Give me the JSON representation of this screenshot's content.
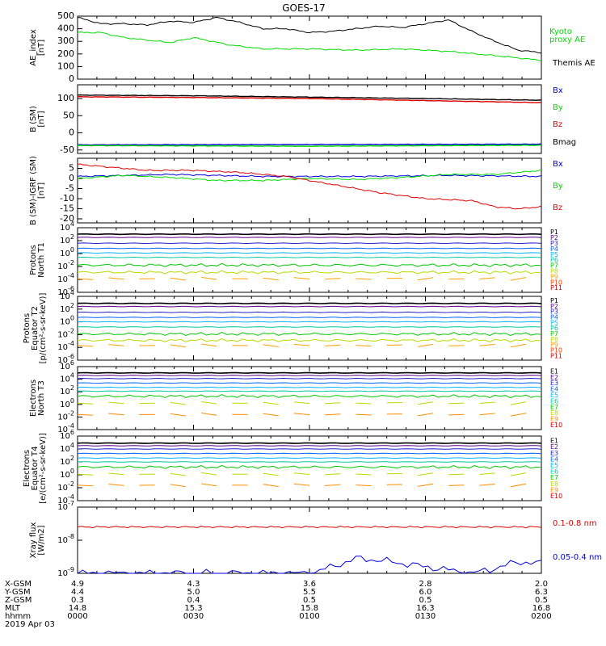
{
  "title": "GOES-17",
  "colors": {
    "black": "#000000",
    "red": "#dd0000",
    "green": "#00dd00",
    "blue": "#0000dd"
  },
  "x_ticks": [
    "0000",
    "0030",
    "0100",
    "0130",
    "0200"
  ],
  "ephemeris": {
    "row_labels": [
      "X-GSM",
      "Y-GSM",
      "Z-GSM",
      "MLT",
      "hhmm"
    ],
    "date_label": "2019 Apr 03",
    "columns": [
      [
        "4.9",
        "4.4",
        "0.3",
        "14.8",
        "0000"
      ],
      [
        "4.3",
        "5.0",
        "0.4",
        "15.3",
        "0030"
      ],
      [
        "3.6",
        "5.5",
        "0.5",
        "15.8",
        "0100"
      ],
      [
        "2.8",
        "6.0",
        "0.5",
        "16.3",
        "0130"
      ],
      [
        "2.0",
        "6.3",
        "0.5",
        "16.8",
        "0200"
      ]
    ]
  },
  "chart_data": [
    {
      "type": "line",
      "ylabel": [
        "AE_index",
        "[nT]"
      ],
      "ylim": [
        0,
        500
      ],
      "yticks": [
        "0",
        "100",
        "200",
        "300",
        "400",
        "500"
      ],
      "x_range_hhmm": [
        "0000",
        "0200"
      ],
      "series": [
        {
          "name": "Kyoto proxy AE",
          "color": "#00dd00",
          "x": [
            0.05,
            0.1,
            0.2,
            0.25,
            0.33,
            0.4,
            0.5,
            0.6,
            0.7,
            0.8,
            0.86,
            0.92,
            0.97,
            1.0
          ],
          "values": [
            370,
            330,
            290,
            330,
            270,
            240,
            240,
            230,
            240,
            220,
            200,
            180,
            160,
            150
          ]
        },
        {
          "name": "Themis AE",
          "color": "#000000",
          "x": [
            0,
            0.02,
            0.05,
            0.1,
            0.15,
            0.2,
            0.25,
            0.3,
            0.35,
            0.4,
            0.45,
            0.5,
            0.55,
            0.6,
            0.65,
            0.7,
            0.75,
            0.8,
            0.85,
            0.9,
            0.95,
            1.0
          ],
          "values": [
            490,
            470,
            440,
            440,
            430,
            460,
            450,
            490,
            450,
            400,
            400,
            370,
            380,
            400,
            420,
            410,
            440,
            470,
            380,
            300,
            230,
            210
          ]
        }
      ]
    },
    {
      "type": "line",
      "ylabel": [
        "B (SM)",
        "[nT]"
      ],
      "ylim": [
        -60,
        140
      ],
      "yticks": [
        "-50",
        "0",
        "50",
        "100"
      ],
      "series": [
        {
          "name": "Bx",
          "color": "#0000dd",
          "x": [
            0,
            1
          ],
          "values": [
            -35,
            -33
          ]
        },
        {
          "name": "By",
          "color": "#00dd00",
          "x": [
            0,
            0.5,
            1
          ],
          "values": [
            -37,
            -39,
            -36
          ]
        },
        {
          "name": "Bz",
          "color": "#dd0000",
          "x": [
            0,
            0.25,
            0.5,
            0.75,
            1
          ],
          "values": [
            105,
            103,
            100,
            94,
            88
          ]
        },
        {
          "name": "Bmag",
          "color": "#000000",
          "x": [
            0,
            0.25,
            0.5,
            0.75,
            1
          ],
          "values": [
            110,
            108,
            104,
            100,
            95
          ]
        }
      ]
    },
    {
      "type": "line",
      "ylabel": [
        "B (SM)-IGRF (SM)",
        "[nT]"
      ],
      "ylim": [
        -22,
        10
      ],
      "yticks": [
        "-20",
        "-15",
        "-10",
        "-5",
        "0",
        "5"
      ],
      "series": [
        {
          "name": "Bx",
          "color": "#0000dd",
          "x": [
            0,
            0.2,
            0.4,
            0.6,
            0.8,
            1
          ],
          "values": [
            1,
            2,
            1,
            1,
            1.5,
            1
          ]
        },
        {
          "name": "By",
          "color": "#00dd00",
          "x": [
            0,
            0.1,
            0.2,
            0.3,
            0.4,
            0.5,
            0.6,
            0.7,
            0.8,
            0.9,
            1
          ],
          "values": [
            0,
            1.5,
            0.5,
            -1,
            -1,
            0,
            -0.5,
            0.5,
            2,
            2,
            4
          ]
        },
        {
          "name": "Bz",
          "color": "#dd0000",
          "x": [
            0,
            0.05,
            0.15,
            0.25,
            0.35,
            0.45,
            0.55,
            0.65,
            0.75,
            0.85,
            0.9,
            0.95,
            1
          ],
          "values": [
            7,
            6,
            4,
            4,
            3,
            1,
            -3,
            -7,
            -10,
            -11,
            -14,
            -15,
            -14
          ]
        }
      ]
    },
    {
      "type": "line",
      "ylabel": [
        "Protons",
        "North T1"
      ],
      "yscale": "log",
      "ylim": [
        -6,
        4
      ],
      "yticks": [
        "10^-6",
        "10^-4",
        "10^-2",
        "10^0",
        "10^2",
        "10^4"
      ],
      "channels": [
        "P1",
        "P2",
        "P3",
        "P4",
        "P5",
        "P6",
        "P7",
        "P8",
        "P9",
        "P10",
        "P11"
      ],
      "channel_colors": [
        "#000000",
        "#5a0087",
        "#2020c8",
        "#0064ff",
        "#00b4ff",
        "#00c8a0",
        "#00c800",
        "#b4dc00",
        "#ffa000",
        "#ff3c00",
        "#c80000"
      ],
      "log_values": [
        3.0,
        2.5,
        1.6,
        0.8,
        0.1,
        -0.6,
        -1.8,
        -2.9,
        -3.9,
        null,
        null
      ]
    },
    {
      "type": "line",
      "ylabel": [
        "Protons",
        "Equator T2",
        "[p/(cm²-s-sr-keV)]"
      ],
      "yscale": "log",
      "ylim": [
        -6,
        4
      ],
      "yticks": [
        "10^-6",
        "10^-4",
        "10^-2",
        "10^0",
        "10^2",
        "10^4"
      ],
      "channels": [
        "P1",
        "P2",
        "P3",
        "P4",
        "P5",
        "P6",
        "P7",
        "P8",
        "P9",
        "P10",
        "P11"
      ],
      "channel_colors": [
        "#000000",
        "#5a0087",
        "#2020c8",
        "#0064ff",
        "#00b4ff",
        "#00c8a0",
        "#00c800",
        "#b4dc00",
        "#ffa000",
        "#ff3c00",
        "#c80000"
      ],
      "log_values": [
        2.9,
        2.4,
        1.5,
        0.7,
        0.0,
        -0.8,
        -1.9,
        -2.9,
        -3.7,
        null,
        null
      ]
    },
    {
      "type": "line",
      "ylabel": [
        "Electrons",
        "North T3"
      ],
      "yscale": "log",
      "ylim": [
        -4,
        6
      ],
      "yticks": [
        "10^-4",
        "10^-2",
        "10^0",
        "10^2",
        "10^4",
        "10^6"
      ],
      "channels": [
        "E1",
        "E2",
        "E3",
        "E4",
        "E5",
        "E6",
        "E7",
        "E8",
        "E9",
        "E10"
      ],
      "channel_colors": [
        "#000000",
        "#5a0087",
        "#2020c8",
        "#0064ff",
        "#00b4ff",
        "#00c8a0",
        "#00c800",
        "#b4dc00",
        "#ff8c00",
        "#c80000"
      ],
      "log_values": [
        5.0,
        4.6,
        4.1,
        3.4,
        2.7,
        2.1,
        1.3,
        0.2,
        -1.6,
        null
      ]
    },
    {
      "type": "line",
      "ylabel": [
        "Electrons",
        "Equator T4",
        "[e/(cm²-s-sr-keV)]"
      ],
      "yscale": "log",
      "ylim": [
        -4,
        6
      ],
      "yticks": [
        "10^-4",
        "10^-2",
        "10^0",
        "10^2",
        "10^4",
        "10^6"
      ],
      "channels": [
        "E1",
        "E2",
        "E3",
        "E4",
        "E5",
        "E6",
        "E7",
        "E8",
        "E9",
        "E10"
      ],
      "channel_colors": [
        "#000000",
        "#5a0087",
        "#2020c8",
        "#0064ff",
        "#00b4ff",
        "#00c8a0",
        "#00c800",
        "#b4dc00",
        "#ff8c00",
        "#c80000"
      ],
      "log_values": [
        4.9,
        4.5,
        4.0,
        3.3,
        2.6,
        2.0,
        1.2,
        0.1,
        -1.6,
        null
      ]
    },
    {
      "type": "line",
      "ylabel": [
        "Xray flux",
        "[W/m2]"
      ],
      "yscale": "log",
      "ylim": [
        -9,
        -7
      ],
      "yticks": [
        "10^-9",
        "10^-8",
        "10^-7"
      ],
      "series": [
        {
          "name": "0.1-0.8 nm",
          "color": "#dd0000",
          "log_level": -7.6
        },
        {
          "name": "0.05-0.4 nm",
          "color": "#0000dd",
          "log_values_x": [
            0.5,
            0.55,
            0.6,
            0.65,
            0.7,
            0.75,
            0.8,
            0.85,
            0.9,
            0.95,
            1.0
          ],
          "log_values": [
            -9.0,
            -8.8,
            -8.55,
            -8.6,
            -8.7,
            -8.8,
            -8.9,
            -9.0,
            -8.85,
            -8.65,
            -8.7
          ]
        }
      ]
    }
  ]
}
